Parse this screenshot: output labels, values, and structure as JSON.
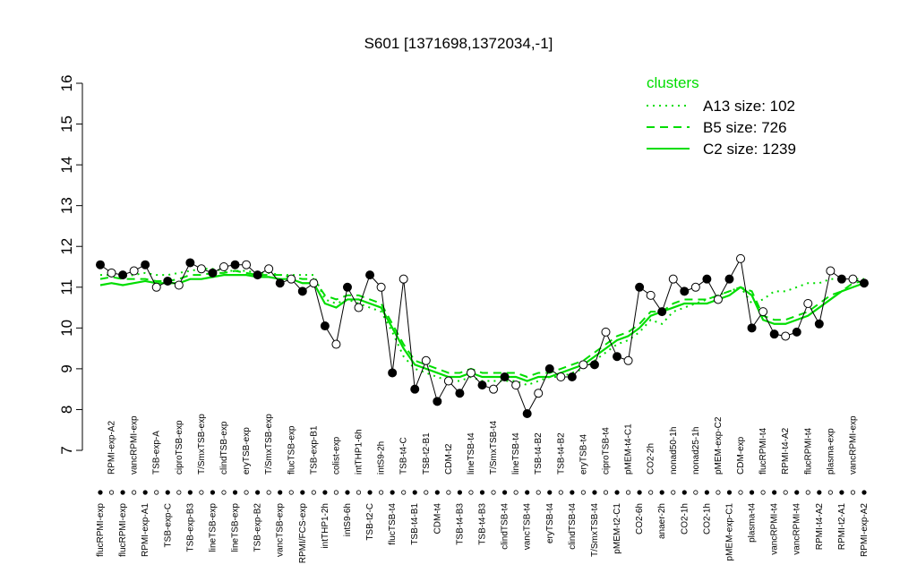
{
  "chart_data": {
    "type": "line",
    "title": "S601 [1371698,1372034,-1]",
    "legend_title": "clusters",
    "ylim": [
      7,
      16
    ],
    "yticks": [
      7,
      8,
      9,
      10,
      11,
      12,
      13,
      14,
      15,
      16
    ],
    "categories": [
      "flucRPMI-exp",
      "RPMI-exp-A2",
      "flucRPMI-exp",
      "vancRPMI-exp",
      "RPMI-exp-A1",
      "TSB-exp-A",
      "TSB-exp-C",
      "ciproTSB-exp",
      "TSB-exp-B3",
      "T/SmxTSB-exp",
      "lineTSB-exp",
      "clindTSB-exp",
      "lineTSB-exp",
      "eryTSB-exp",
      "TSB-exp-B2",
      "T/SmxTSB-exp",
      "vancTSB-exp",
      "flucTSB-exp",
      "RPMI/FCS-exp",
      "TSB-exp-B1",
      "intTHP1-2h",
      "colist-exp",
      "intS9-6h",
      "intTHP1-6h",
      "TSB-t2-C",
      "intS9-2h",
      "flucTSB-t4",
      "TSB-t4-C",
      "TSB-t4-B1",
      "TSB-t2-B1",
      "CDM-t4",
      "CDM-t2",
      "TSB-t4-B3",
      "lineTSB-t4",
      "TSB-t4-B3",
      "T/SmxTSB-t4",
      "clindTSB-t4",
      "lineTSB-t4",
      "vancTSB-t4",
      "TSB-t4-B2",
      "eryTSB-t4",
      "TSB-t4-B2",
      "clindTSB-t4",
      "eryTSB-t4",
      "T/SmxTSB-t4",
      "ciproTSB-t4",
      "pMEM-t2-C1",
      "pMEM-t4-C1",
      "CO2-6h",
      "CO2-2h",
      "anaer-2h",
      "nonad50-1h",
      "CO2-1h",
      "nonad25-1h",
      "CO2-1h",
      "pMEM-exp-C2",
      "pMEM-exp-C1",
      "CDM-exp",
      "plasma-t4",
      "flucRPMI-t4",
      "vancRPMI-t4",
      "RPMI-t4-A2",
      "vancRPMI-t4",
      "flucRPMI-t4",
      "RPMI-t4-A2",
      "plasma-exp",
      "RPMI-t2-A1",
      "vancRPMI-exp",
      "RPMI-exp-A2"
    ],
    "values": [
      11.55,
      11.35,
      11.3,
      11.4,
      11.55,
      11.0,
      11.15,
      11.05,
      11.6,
      11.45,
      11.35,
      11.5,
      11.55,
      11.55,
      11.3,
      11.45,
      11.1,
      11.2,
      10.9,
      11.1,
      10.05,
      9.6,
      11.0,
      10.5,
      11.3,
      11.0,
      8.9,
      11.2,
      8.5,
      9.2,
      8.2,
      8.7,
      8.4,
      8.9,
      8.6,
      8.5,
      8.8,
      8.6,
      7.9,
      8.4,
      9.0,
      8.8,
      8.8,
      9.1,
      9.1,
      9.9,
      9.3,
      9.2,
      11.0,
      10.8,
      10.4,
      11.2,
      10.9,
      11.0,
      11.2,
      10.7,
      11.2,
      11.7,
      10.0,
      10.4,
      9.85,
      9.8,
      9.9,
      10.6,
      10.1,
      11.4,
      11.2,
      11.2,
      11.1
    ],
    "series": [
      {
        "name": "A13 size: 102",
        "color": "#00dd00",
        "dash": "dotted",
        "values": [
          11.3,
          11.3,
          11.25,
          11.3,
          11.35,
          11.3,
          11.3,
          11.35,
          11.4,
          11.45,
          11.45,
          11.4,
          11.4,
          11.4,
          11.35,
          11.35,
          11.3,
          11.3,
          11.3,
          11.3,
          10.7,
          10.6,
          10.7,
          10.6,
          10.5,
          10.4,
          9.9,
          9.3,
          9.0,
          8.9,
          8.8,
          8.7,
          8.7,
          8.8,
          8.7,
          8.7,
          8.7,
          8.7,
          8.6,
          8.7,
          8.8,
          8.8,
          8.9,
          9.0,
          9.2,
          9.4,
          9.6,
          9.7,
          9.9,
          10.2,
          10.1,
          10.4,
          10.5,
          10.6,
          10.7,
          10.8,
          10.9,
          11.0,
          10.6,
          10.7,
          10.9,
          10.9,
          11.0,
          11.1,
          11.1,
          11.2,
          11.2,
          11.2,
          11.2
        ]
      },
      {
        "name": "B5 size: 726",
        "color": "#00dd00",
        "dash": "dashed",
        "values": [
          11.2,
          11.25,
          11.2,
          11.2,
          11.2,
          11.15,
          11.15,
          11.2,
          11.3,
          11.3,
          11.35,
          11.35,
          11.4,
          11.35,
          11.3,
          11.3,
          11.3,
          11.25,
          11.2,
          11.2,
          10.8,
          10.7,
          10.8,
          10.8,
          10.7,
          10.6,
          10.1,
          9.6,
          9.2,
          9.1,
          9.0,
          8.9,
          8.9,
          9.0,
          8.9,
          8.9,
          8.9,
          8.9,
          8.8,
          8.9,
          8.9,
          9.0,
          9.1,
          9.2,
          9.4,
          9.6,
          9.8,
          9.9,
          10.1,
          10.4,
          10.4,
          10.6,
          10.7,
          10.7,
          10.7,
          10.8,
          10.9,
          11.0,
          10.9,
          10.3,
          10.2,
          10.2,
          10.3,
          10.4,
          10.6,
          10.8,
          10.9,
          11.1,
          11.15
        ]
      },
      {
        "name": "C2 size: 1239",
        "color": "#00dd00",
        "dash": "solid",
        "values": [
          11.05,
          11.1,
          11.05,
          11.1,
          11.15,
          11.1,
          11.1,
          11.1,
          11.2,
          11.2,
          11.25,
          11.3,
          11.3,
          11.3,
          11.25,
          11.25,
          11.2,
          11.2,
          11.1,
          11.1,
          10.6,
          10.5,
          10.7,
          10.7,
          10.6,
          10.5,
          10.0,
          9.5,
          9.1,
          9.0,
          8.9,
          8.8,
          8.8,
          8.9,
          8.8,
          8.8,
          8.8,
          8.8,
          8.7,
          8.8,
          8.8,
          8.9,
          9.0,
          9.1,
          9.3,
          9.5,
          9.7,
          9.8,
          10.0,
          10.3,
          10.4,
          10.5,
          10.6,
          10.6,
          10.6,
          10.7,
          10.8,
          11.0,
          10.8,
          10.2,
          10.1,
          10.1,
          10.2,
          10.3,
          10.5,
          10.7,
          10.9,
          11.0,
          11.1
        ]
      }
    ]
  }
}
